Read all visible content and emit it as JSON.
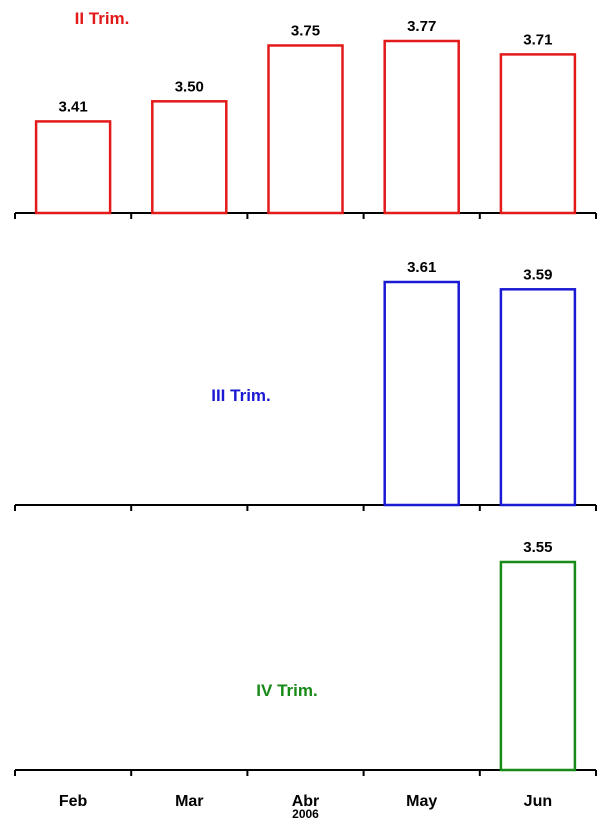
{
  "chart_data": [
    {
      "type": "bar",
      "title": "II Trim.",
      "color": "#e31a1a",
      "categories": [
        "Feb",
        "Mar",
        "Abr",
        "May",
        "Jun"
      ],
      "values": [
        3.41,
        3.5,
        3.75,
        3.77,
        3.71
      ],
      "value_labels": [
        "3.41",
        "3.50",
        "3.75",
        "3.77",
        "3.71"
      ]
    },
    {
      "type": "bar",
      "title": "III Trim.",
      "color": "#1a1ad4",
      "categories": [
        "Feb",
        "Mar",
        "Abr",
        "May",
        "Jun"
      ],
      "values": [
        null,
        null,
        null,
        3.61,
        3.59
      ],
      "value_labels": [
        "",
        "",
        "",
        "3.61",
        "3.59"
      ]
    },
    {
      "type": "bar",
      "title": "IV Trim.",
      "color": "#178a17",
      "categories": [
        "Feb",
        "Mar",
        "Abr",
        "May",
        "Jun"
      ],
      "values": [
        null,
        null,
        null,
        null,
        3.55
      ],
      "value_labels": [
        "",
        "",
        "",
        "",
        "3.55"
      ]
    }
  ],
  "x_axis": {
    "categories": [
      "Feb",
      "Mar",
      "Abr",
      "May",
      "Jun"
    ],
    "year_label": "2006"
  }
}
